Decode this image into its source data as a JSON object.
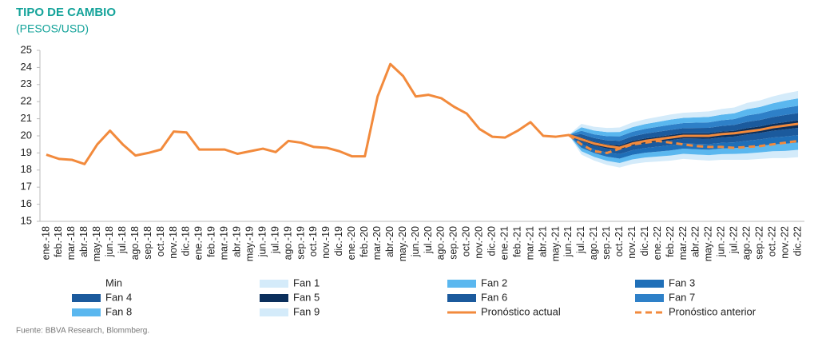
{
  "chart_data": {
    "type": "fan",
    "title": "TIPO DE CAMBIO",
    "subtitle": "(PESOS/USD)",
    "source": "Fuente: BBVA Research, Blommberg.",
    "categories": [
      "ene.-18",
      "feb.-18",
      "mar.-18",
      "abr.-18",
      "may.-18",
      "jun.-18",
      "jul.-18",
      "ago.-18",
      "sep.-18",
      "oct.-18",
      "nov.-18",
      "dic.-18",
      "ene.-19",
      "feb.-19",
      "mar.-19",
      "abr.-19",
      "may.-19",
      "jun.-19",
      "jul.-19",
      "ago.-19",
      "sep.-19",
      "oct.-19",
      "nov.-19",
      "dic.-19",
      "ene.-20",
      "feb.-20",
      "mar.-20",
      "abr.-20",
      "may.-20",
      "jun.-20",
      "jul.-20",
      "ago.-20",
      "sep.-20",
      "oct.-20",
      "nov.-20",
      "dic.-20",
      "ene.-21",
      "feb.-21",
      "mar.-21",
      "abr.-21",
      "may.-21",
      "jun.-21",
      "jul.-21",
      "ago.-21",
      "sep.-21",
      "oct.-21",
      "nov.-21",
      "dic.-21",
      "ene.-22",
      "feb.-22",
      "mar.-22",
      "abr.-22",
      "may.-22",
      "jun.-22",
      "jul.-22",
      "ago.-22",
      "sep.-22",
      "oct.-22",
      "nov.-22",
      "dic.-22"
    ],
    "ylim": [
      15,
      25
    ],
    "yticks": [
      15,
      16,
      17,
      18,
      19,
      20,
      21,
      22,
      23,
      24,
      25
    ],
    "series": [
      {
        "name": "Min",
        "color": "#ffffff",
        "style": "stack-base",
        "values": [
          null,
          null,
          null,
          null,
          null,
          null,
          null,
          null,
          null,
          null,
          null,
          null,
          null,
          null,
          null,
          null,
          null,
          null,
          null,
          null,
          null,
          null,
          null,
          null,
          null,
          null,
          null,
          null,
          null,
          null,
          null,
          null,
          null,
          null,
          null,
          null,
          null,
          null,
          null,
          null,
          null,
          20.05,
          18.9,
          18.55,
          18.3,
          18.15,
          18.35,
          18.45,
          18.5,
          18.55,
          18.65,
          18.6,
          18.55,
          18.6,
          18.6,
          18.6,
          18.65,
          18.7,
          18.7,
          18.75
        ]
      },
      {
        "name": "Fan 1",
        "color": "#d4ebfa",
        "style": "stack",
        "values": [
          null,
          null,
          null,
          null,
          null,
          null,
          null,
          null,
          null,
          null,
          null,
          null,
          null,
          null,
          null,
          null,
          null,
          null,
          null,
          null,
          null,
          null,
          null,
          null,
          null,
          null,
          null,
          null,
          null,
          null,
          null,
          null,
          null,
          null,
          null,
          null,
          null,
          null,
          null,
          null,
          null,
          0,
          0.2,
          0.22,
          0.24,
          0.26,
          0.27,
          0.28,
          0.29,
          0.3,
          0.3,
          0.31,
          0.32,
          0.33,
          0.34,
          0.37,
          0.38,
          0.4,
          0.42,
          0.43
        ]
      },
      {
        "name": "Fan 2",
        "color": "#5ab7ef",
        "style": "stack",
        "values": [
          null,
          null,
          null,
          null,
          null,
          null,
          null,
          null,
          null,
          null,
          null,
          null,
          null,
          null,
          null,
          null,
          null,
          null,
          null,
          null,
          null,
          null,
          null,
          null,
          null,
          null,
          null,
          null,
          null,
          null,
          null,
          null,
          null,
          null,
          null,
          null,
          null,
          null,
          null,
          null,
          null,
          0,
          0.2,
          0.22,
          0.24,
          0.26,
          0.27,
          0.28,
          0.29,
          0.3,
          0.3,
          0.31,
          0.32,
          0.33,
          0.34,
          0.37,
          0.38,
          0.4,
          0.42,
          0.43
        ]
      },
      {
        "name": "Fan 3",
        "color": "#1f6fb8",
        "style": "stack",
        "values": [
          null,
          null,
          null,
          null,
          null,
          null,
          null,
          null,
          null,
          null,
          null,
          null,
          null,
          null,
          null,
          null,
          null,
          null,
          null,
          null,
          null,
          null,
          null,
          null,
          null,
          null,
          null,
          null,
          null,
          null,
          null,
          null,
          null,
          null,
          null,
          null,
          null,
          null,
          null,
          null,
          null,
          0,
          0.2,
          0.22,
          0.24,
          0.26,
          0.27,
          0.28,
          0.29,
          0.3,
          0.3,
          0.31,
          0.32,
          0.33,
          0.34,
          0.37,
          0.38,
          0.4,
          0.42,
          0.43
        ]
      },
      {
        "name": "Fan 4",
        "color": "#1b5a9d",
        "style": "stack",
        "values": [
          null,
          null,
          null,
          null,
          null,
          null,
          null,
          null,
          null,
          null,
          null,
          null,
          null,
          null,
          null,
          null,
          null,
          null,
          null,
          null,
          null,
          null,
          null,
          null,
          null,
          null,
          null,
          null,
          null,
          null,
          null,
          null,
          null,
          null,
          null,
          null,
          null,
          null,
          null,
          null,
          null,
          0,
          0.2,
          0.22,
          0.24,
          0.26,
          0.27,
          0.28,
          0.29,
          0.3,
          0.3,
          0.31,
          0.32,
          0.33,
          0.34,
          0.37,
          0.38,
          0.4,
          0.42,
          0.43
        ]
      },
      {
        "name": "Fan 5",
        "color": "#0b2f5c",
        "style": "stack",
        "values": [
          null,
          null,
          null,
          null,
          null,
          null,
          null,
          null,
          null,
          null,
          null,
          null,
          null,
          null,
          null,
          null,
          null,
          null,
          null,
          null,
          null,
          null,
          null,
          null,
          null,
          null,
          null,
          null,
          null,
          null,
          null,
          null,
          null,
          null,
          null,
          null,
          null,
          null,
          null,
          null,
          null,
          0,
          0.2,
          0.22,
          0.24,
          0.26,
          0.27,
          0.28,
          0.29,
          0.3,
          0.3,
          0.31,
          0.32,
          0.33,
          0.34,
          0.37,
          0.38,
          0.4,
          0.42,
          0.43
        ]
      },
      {
        "name": "Fan 6",
        "color": "#1b5a9d",
        "style": "stack",
        "values": [
          null,
          null,
          null,
          null,
          null,
          null,
          null,
          null,
          null,
          null,
          null,
          null,
          null,
          null,
          null,
          null,
          null,
          null,
          null,
          null,
          null,
          null,
          null,
          null,
          null,
          null,
          null,
          null,
          null,
          null,
          null,
          null,
          null,
          null,
          null,
          null,
          null,
          null,
          null,
          null,
          null,
          0,
          0.2,
          0.22,
          0.24,
          0.26,
          0.27,
          0.28,
          0.29,
          0.3,
          0.3,
          0.31,
          0.32,
          0.33,
          0.34,
          0.37,
          0.38,
          0.4,
          0.42,
          0.43
        ]
      },
      {
        "name": "Fan 7",
        "color": "#2e80c8",
        "style": "stack",
        "values": [
          null,
          null,
          null,
          null,
          null,
          null,
          null,
          null,
          null,
          null,
          null,
          null,
          null,
          null,
          null,
          null,
          null,
          null,
          null,
          null,
          null,
          null,
          null,
          null,
          null,
          null,
          null,
          null,
          null,
          null,
          null,
          null,
          null,
          null,
          null,
          null,
          null,
          null,
          null,
          null,
          null,
          0,
          0.2,
          0.22,
          0.24,
          0.26,
          0.27,
          0.28,
          0.29,
          0.3,
          0.3,
          0.31,
          0.32,
          0.33,
          0.34,
          0.37,
          0.38,
          0.4,
          0.42,
          0.43
        ]
      },
      {
        "name": "Fan 8",
        "color": "#5ab7ef",
        "style": "stack",
        "values": [
          null,
          null,
          null,
          null,
          null,
          null,
          null,
          null,
          null,
          null,
          null,
          null,
          null,
          null,
          null,
          null,
          null,
          null,
          null,
          null,
          null,
          null,
          null,
          null,
          null,
          null,
          null,
          null,
          null,
          null,
          null,
          null,
          null,
          null,
          null,
          null,
          null,
          null,
          null,
          null,
          null,
          0,
          0.2,
          0.22,
          0.24,
          0.26,
          0.27,
          0.28,
          0.29,
          0.3,
          0.3,
          0.31,
          0.32,
          0.33,
          0.34,
          0.37,
          0.38,
          0.4,
          0.42,
          0.43
        ]
      },
      {
        "name": "Fan 9",
        "color": "#d4ebfa",
        "style": "stack",
        "values": [
          null,
          null,
          null,
          null,
          null,
          null,
          null,
          null,
          null,
          null,
          null,
          null,
          null,
          null,
          null,
          null,
          null,
          null,
          null,
          null,
          null,
          null,
          null,
          null,
          null,
          null,
          null,
          null,
          null,
          null,
          null,
          null,
          null,
          null,
          null,
          null,
          null,
          null,
          null,
          null,
          null,
          0,
          0.2,
          0.22,
          0.24,
          0.26,
          0.27,
          0.28,
          0.29,
          0.3,
          0.3,
          0.31,
          0.32,
          0.33,
          0.34,
          0.37,
          0.38,
          0.4,
          0.42,
          0.43
        ]
      },
      {
        "name": "Pronóstico actual",
        "color": "#f28a3c",
        "style": "line",
        "values": [
          18.9,
          18.65,
          18.6,
          18.35,
          19.5,
          20.3,
          19.5,
          18.85,
          19.0,
          19.2,
          20.25,
          20.2,
          19.2,
          19.2,
          19.2,
          18.95,
          19.1,
          19.25,
          19.05,
          19.7,
          19.6,
          19.35,
          19.3,
          19.1,
          18.8,
          18.8,
          22.3,
          24.2,
          23.5,
          22.3,
          22.4,
          22.2,
          21.7,
          21.3,
          20.4,
          19.95,
          19.9,
          20.3,
          20.8,
          20.0,
          19.95,
          20.05,
          19.8,
          19.55,
          19.4,
          19.3,
          19.55,
          19.7,
          19.8,
          19.9,
          20.0,
          20.0,
          20.0,
          20.1,
          20.15,
          20.25,
          20.35,
          20.5,
          20.6,
          20.7
        ]
      },
      {
        "name": "Pronóstico anterior",
        "color": "#f28a3c",
        "style": "dashed",
        "values": [
          null,
          null,
          null,
          null,
          null,
          null,
          null,
          null,
          null,
          null,
          null,
          null,
          null,
          null,
          null,
          null,
          null,
          null,
          null,
          null,
          null,
          null,
          null,
          null,
          null,
          null,
          null,
          null,
          null,
          null,
          null,
          null,
          null,
          null,
          null,
          null,
          null,
          null,
          null,
          null,
          null,
          20.05,
          19.5,
          19.1,
          19.0,
          19.25,
          19.5,
          19.6,
          19.7,
          19.6,
          19.5,
          19.4,
          19.35,
          19.35,
          19.3,
          19.35,
          19.4,
          19.5,
          19.6,
          19.7
        ]
      }
    ]
  }
}
